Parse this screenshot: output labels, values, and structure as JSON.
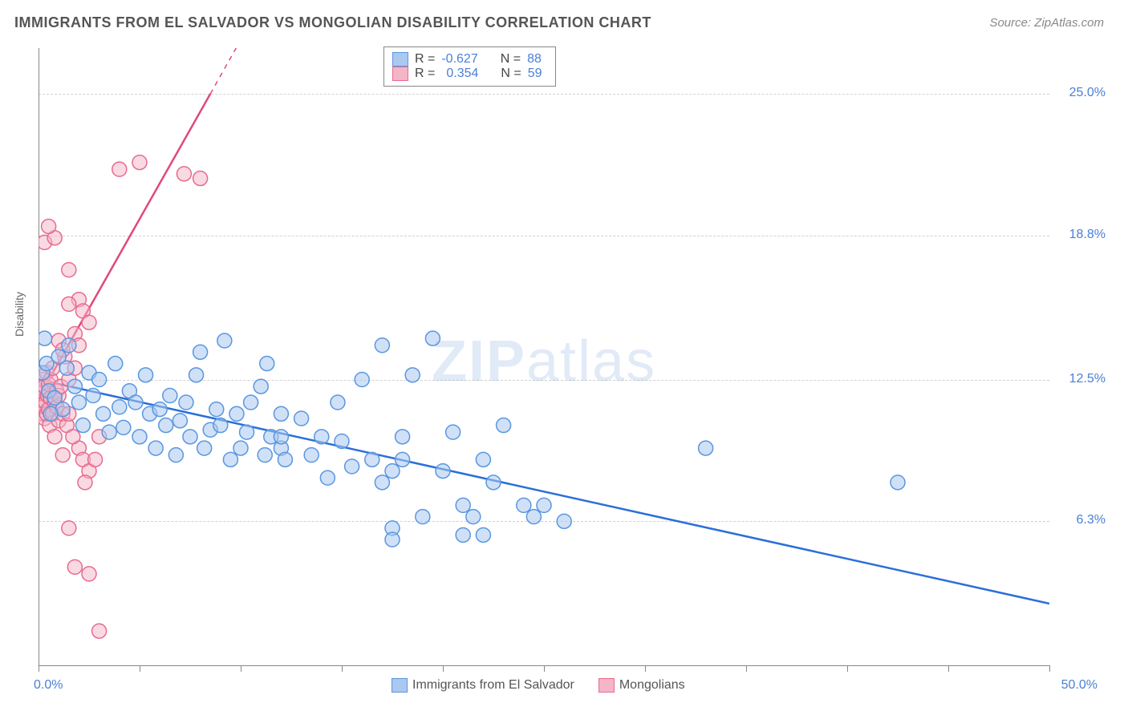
{
  "title": "IMMIGRANTS FROM EL SALVADOR VS MONGOLIAN DISABILITY CORRELATION CHART",
  "source": "Source: ZipAtlas.com",
  "ylabel": "Disability",
  "watermark_bold": "ZIP",
  "watermark_rest": "atlas",
  "chart": {
    "type": "scatter",
    "background_color": "#ffffff",
    "grid_color": "#d0d0d0",
    "axis_color": "#888888",
    "xlim": [
      0,
      50
    ],
    "ylim": [
      0,
      27
    ],
    "ytick_values": [
      6.3,
      12.5,
      18.8,
      25.0
    ],
    "ytick_labels": [
      "6.3%",
      "12.5%",
      "18.8%",
      "25.0%"
    ],
    "xtick_values": [
      0,
      5,
      10,
      15,
      20,
      25,
      30,
      35,
      40,
      45,
      50
    ],
    "xtick_label_left": "0.0%",
    "xtick_label_right": "50.0%",
    "ytick_color": "#4a7fd8",
    "xtick_color": "#4a7fd8",
    "marker_radius": 9,
    "marker_stroke_width": 1.5,
    "trendline_width": 2.5
  },
  "series_a": {
    "name": "Immigrants from El Salvador",
    "fill": "#a9c9f0",
    "stroke": "#5a96e0",
    "fill_opacity": 0.55,
    "R": "-0.627",
    "N": "88",
    "trend_color": "#2a6fd8",
    "trend_x1": 0,
    "trend_y1": 12.5,
    "trend_x2": 50,
    "trend_y2": 2.7,
    "points": [
      [
        0.2,
        12.8
      ],
      [
        0.4,
        13.2
      ],
      [
        0.5,
        12.0
      ],
      [
        0.8,
        11.7
      ],
      [
        1.0,
        13.5
      ],
      [
        1.2,
        11.2
      ],
      [
        1.4,
        13.0
      ],
      [
        1.5,
        14.0
      ],
      [
        0.3,
        14.3
      ],
      [
        0.6,
        11.0
      ],
      [
        1.8,
        12.2
      ],
      [
        2.0,
        11.5
      ],
      [
        2.2,
        10.5
      ],
      [
        2.5,
        12.8
      ],
      [
        2.7,
        11.8
      ],
      [
        3.0,
        12.5
      ],
      [
        3.2,
        11.0
      ],
      [
        3.5,
        10.2
      ],
      [
        3.8,
        13.2
      ],
      [
        4.0,
        11.3
      ],
      [
        4.2,
        10.4
      ],
      [
        4.5,
        12.0
      ],
      [
        4.8,
        11.5
      ],
      [
        5.0,
        10.0
      ],
      [
        5.3,
        12.7
      ],
      [
        5.5,
        11.0
      ],
      [
        5.8,
        9.5
      ],
      [
        6.0,
        11.2
      ],
      [
        6.3,
        10.5
      ],
      [
        6.5,
        11.8
      ],
      [
        6.8,
        9.2
      ],
      [
        7.0,
        10.7
      ],
      [
        7.3,
        11.5
      ],
      [
        7.5,
        10.0
      ],
      [
        7.8,
        12.7
      ],
      [
        8.0,
        13.7
      ],
      [
        8.2,
        9.5
      ],
      [
        8.5,
        10.3
      ],
      [
        8.8,
        11.2
      ],
      [
        9.0,
        10.5
      ],
      [
        9.2,
        14.2
      ],
      [
        9.5,
        9.0
      ],
      [
        9.8,
        11.0
      ],
      [
        10.0,
        9.5
      ],
      [
        10.3,
        10.2
      ],
      [
        10.5,
        11.5
      ],
      [
        11.0,
        12.2
      ],
      [
        11.2,
        9.2
      ],
      [
        11.3,
        13.2
      ],
      [
        11.5,
        10.0
      ],
      [
        12.0,
        9.5
      ],
      [
        12.0,
        11.0
      ],
      [
        12.0,
        10.0
      ],
      [
        12.2,
        9.0
      ],
      [
        13.0,
        10.8
      ],
      [
        13.5,
        9.2
      ],
      [
        14.0,
        10.0
      ],
      [
        14.3,
        8.2
      ],
      [
        14.8,
        11.5
      ],
      [
        15.0,
        9.8
      ],
      [
        15.5,
        8.7
      ],
      [
        16.0,
        12.5
      ],
      [
        16.5,
        9.0
      ],
      [
        17.0,
        8.0
      ],
      [
        17.0,
        14.0
      ],
      [
        17.5,
        8.5
      ],
      [
        17.5,
        6.0
      ],
      [
        17.5,
        5.5
      ],
      [
        18.0,
        10.0
      ],
      [
        18.0,
        9.0
      ],
      [
        18.5,
        12.7
      ],
      [
        19.0,
        6.5
      ],
      [
        19.5,
        14.3
      ],
      [
        20.0,
        8.5
      ],
      [
        20.5,
        10.2
      ],
      [
        21.0,
        7.0
      ],
      [
        21.0,
        5.7
      ],
      [
        21.5,
        6.5
      ],
      [
        22.0,
        9.0
      ],
      [
        22.0,
        5.7
      ],
      [
        22.5,
        8.0
      ],
      [
        23.0,
        10.5
      ],
      [
        24.0,
        7.0
      ],
      [
        24.5,
        6.5
      ],
      [
        25.0,
        7.0
      ],
      [
        26.0,
        6.3
      ],
      [
        33.0,
        9.5
      ],
      [
        42.5,
        8.0
      ]
    ]
  },
  "series_b": {
    "name": "Mongolians",
    "fill": "#f4b6c6",
    "stroke": "#e86a90",
    "fill_opacity": 0.5,
    "R": "0.354",
    "N": "59",
    "trend_color": "#e04a7a",
    "trend_x1": 0,
    "trend_y1": 11.7,
    "trend_x2": 8.5,
    "trend_y2": 25.0,
    "trend_dash_x1": 8.5,
    "trend_dash_y1": 25.0,
    "trend_dash_x2": 12.0,
    "trend_dash_y2": 30.5,
    "points": [
      [
        0.1,
        11.5
      ],
      [
        0.15,
        12.0
      ],
      [
        0.2,
        11.0
      ],
      [
        0.2,
        12.5
      ],
      [
        0.25,
        11.3
      ],
      [
        0.3,
        10.8
      ],
      [
        0.3,
        12.2
      ],
      [
        0.35,
        11.5
      ],
      [
        0.4,
        11.0
      ],
      [
        0.4,
        12.8
      ],
      [
        0.45,
        11.8
      ],
      [
        0.5,
        11.2
      ],
      [
        0.5,
        12.3
      ],
      [
        0.55,
        10.5
      ],
      [
        0.6,
        11.7
      ],
      [
        0.6,
        12.5
      ],
      [
        0.7,
        11.0
      ],
      [
        0.7,
        13.0
      ],
      [
        0.8,
        11.5
      ],
      [
        0.8,
        10.0
      ],
      [
        0.9,
        12.0
      ],
      [
        0.9,
        11.3
      ],
      [
        1.0,
        11.8
      ],
      [
        1.0,
        10.7
      ],
      [
        1.1,
        12.2
      ],
      [
        1.2,
        11.0
      ],
      [
        1.3,
        13.5
      ],
      [
        1.4,
        10.5
      ],
      [
        1.5,
        12.5
      ],
      [
        1.5,
        11.0
      ],
      [
        0.3,
        18.5
      ],
      [
        0.8,
        18.7
      ],
      [
        0.5,
        19.2
      ],
      [
        1.5,
        17.3
      ],
      [
        2.0,
        16.0
      ],
      [
        2.2,
        15.5
      ],
      [
        2.5,
        15.0
      ],
      [
        1.5,
        15.8
      ],
      [
        1.8,
        14.5
      ],
      [
        2.0,
        14.0
      ],
      [
        1.0,
        14.2
      ],
      [
        1.2,
        13.8
      ],
      [
        1.8,
        13.0
      ],
      [
        2.0,
        9.5
      ],
      [
        2.2,
        9.0
      ],
      [
        1.7,
        10.0
      ],
      [
        1.2,
        9.2
      ],
      [
        2.5,
        8.5
      ],
      [
        3.0,
        10.0
      ],
      [
        2.8,
        9.0
      ],
      [
        2.3,
        8.0
      ],
      [
        1.5,
        6.0
      ],
      [
        1.8,
        4.3
      ],
      [
        2.5,
        4.0
      ],
      [
        3.0,
        1.5
      ],
      [
        4.0,
        21.7
      ],
      [
        5.0,
        22.0
      ],
      [
        7.2,
        21.5
      ],
      [
        8.0,
        21.3
      ]
    ]
  },
  "legend": {
    "R_label": "R =",
    "N_label": "N ="
  }
}
